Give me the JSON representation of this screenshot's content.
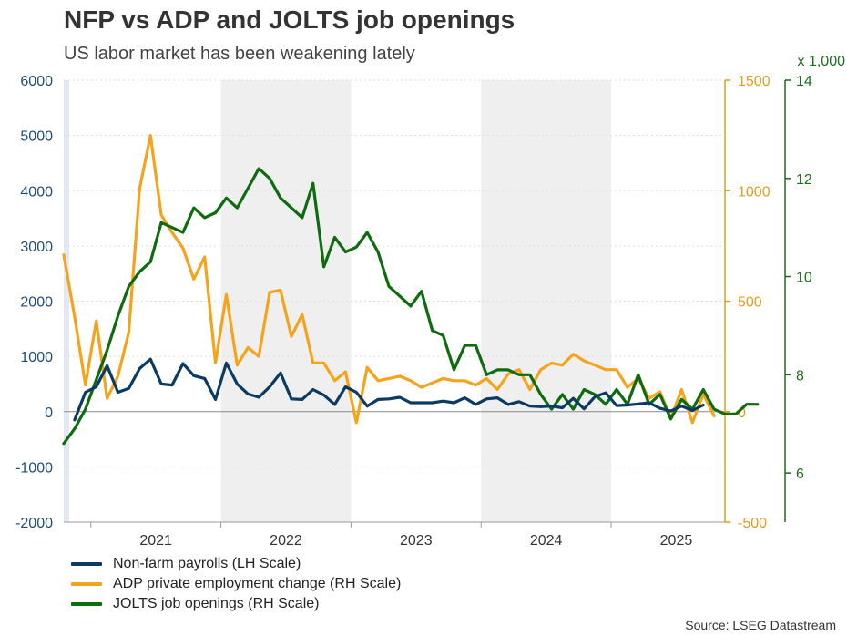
{
  "colors": {
    "nfp": "#0b3a63",
    "adp": "#f5a31a",
    "jolts": "#0e6b0e",
    "lh_axis": "#1f4e79",
    "rh_axis": "#e0a020",
    "rh2_axis": "#1a6e1a",
    "shade": "#efefef"
  },
  "chart_data": {
    "type": "line",
    "title": "NFP vs ADP and JOLTS job openings",
    "subtitle": "US labor market has been weakening lately",
    "source": "Source: LSEG Datastream",
    "x_tick_labels": [
      "2021",
      "2022",
      "2023",
      "2024",
      "2025"
    ],
    "x_range": [
      "2020-10",
      "2025-11"
    ],
    "shaded_periods": [
      [
        "2022-01",
        "2022-12"
      ],
      [
        "2024-01",
        "2024-12"
      ]
    ],
    "axes": {
      "lh": {
        "min": -2000,
        "max": 6000,
        "ticks": [
          "-2000",
          "-1000",
          "0",
          "1000",
          "2000",
          "3000",
          "4000",
          "5000",
          "6000"
        ]
      },
      "rh": {
        "min": -500,
        "max": 1500,
        "ticks": [
          "-500",
          "0",
          "500",
          "1000",
          "1500"
        ]
      },
      "rh2": {
        "min": 5,
        "max": 14,
        "ticks": [
          "6",
          "8",
          "10",
          "12",
          "14"
        ],
        "unit_label": "x 1,000"
      }
    },
    "series": [
      {
        "name": "Non-farm payrolls (LH Scale)",
        "axis": "lh",
        "start": "2020-11",
        "values": [
          -150,
          350,
          450,
          830,
          350,
          420,
          780,
          950,
          500,
          480,
          870,
          650,
          600,
          220,
          880,
          500,
          320,
          260,
          450,
          700,
          230,
          220,
          400,
          300,
          130,
          450,
          350,
          100,
          220,
          230,
          260,
          160,
          160,
          160,
          190,
          160,
          250,
          130,
          230,
          250,
          130,
          180,
          100,
          90,
          100,
          70,
          240,
          50,
          270,
          340,
          110,
          120,
          140,
          160,
          60,
          10,
          100,
          20,
          120
        ]
      },
      {
        "name": "ADP private employment change (RH Scale)",
        "axis": "rh",
        "start": "2020-10",
        "values": [
          710,
          430,
          120,
          410,
          60,
          160,
          360,
          1010,
          1250,
          890,
          810,
          740,
          600,
          700,
          220,
          530,
          210,
          290,
          250,
          540,
          550,
          340,
          440,
          220,
          220,
          140,
          180,
          -50,
          200,
          140,
          150,
          160,
          140,
          110,
          130,
          150,
          140,
          140,
          120,
          150,
          100,
          170,
          190,
          100,
          190,
          220,
          210,
          260,
          230,
          210,
          190,
          190,
          110,
          150,
          60,
          90,
          -30,
          100,
          -50,
          80,
          -20
        ]
      },
      {
        "name": "JOLTS job openings (RH Scale)",
        "axis": "rh2",
        "start": "2020-10",
        "values": [
          6.6,
          6.9,
          7.3,
          7.9,
          8.5,
          9.2,
          9.8,
          10.1,
          10.3,
          11.1,
          11.0,
          10.9,
          11.4,
          11.2,
          11.3,
          11.6,
          11.4,
          11.8,
          12.2,
          12.0,
          11.6,
          11.4,
          11.2,
          11.9,
          10.2,
          10.8,
          10.5,
          10.6,
          10.9,
          10.5,
          9.8,
          9.6,
          9.4,
          9.7,
          8.9,
          8.8,
          8.1,
          8.6,
          8.6,
          8.0,
          8.1,
          8.1,
          8.0,
          8.0,
          7.6,
          7.3,
          7.6,
          7.3,
          7.7,
          7.6,
          7.4,
          7.7,
          7.4,
          8.0,
          7.4,
          7.6,
          7.1,
          7.5,
          7.3,
          7.7,
          7.3,
          7.2,
          7.2,
          7.4,
          7.4
        ]
      }
    ]
  }
}
